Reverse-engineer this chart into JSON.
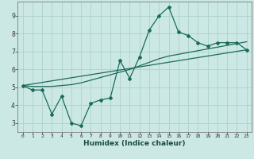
{
  "title": "",
  "xlabel": "Humidex (Indice chaleur)",
  "bg_color": "#cce8e4",
  "grid_color": "#b0d4d0",
  "line_color": "#1a6b5a",
  "xlim": [
    -0.5,
    23.5
  ],
  "ylim": [
    2.5,
    9.8
  ],
  "xticks": [
    0,
    1,
    2,
    3,
    4,
    5,
    6,
    7,
    8,
    9,
    10,
    11,
    12,
    13,
    14,
    15,
    16,
    17,
    18,
    19,
    20,
    21,
    22,
    23
  ],
  "yticks": [
    3,
    4,
    5,
    6,
    7,
    8,
    9
  ],
  "line1_x": [
    0,
    1,
    2,
    3,
    4,
    5,
    6,
    7,
    8,
    9,
    10,
    11,
    12,
    13,
    14,
    15,
    16,
    17,
    18,
    19,
    20,
    21,
    22,
    23
  ],
  "line1_y": [
    5.1,
    4.85,
    4.85,
    3.5,
    4.5,
    3.0,
    2.85,
    4.1,
    4.3,
    4.4,
    6.5,
    5.5,
    6.7,
    8.2,
    9.0,
    9.5,
    8.1,
    7.9,
    7.5,
    7.3,
    7.5,
    7.5,
    7.5,
    7.1
  ],
  "line2_x": [
    0,
    1,
    2,
    3,
    4,
    5,
    6,
    7,
    8,
    9,
    10,
    11,
    12,
    13,
    14,
    15,
    16,
    17,
    18,
    19,
    20,
    21,
    22,
    23
  ],
  "line2_y": [
    5.1,
    5.05,
    5.05,
    5.05,
    5.1,
    5.15,
    5.25,
    5.4,
    5.55,
    5.7,
    5.85,
    6.0,
    6.2,
    6.4,
    6.6,
    6.75,
    6.85,
    6.95,
    7.05,
    7.15,
    7.25,
    7.35,
    7.45,
    7.55
  ],
  "line3_x": [
    0,
    23
  ],
  "line3_y": [
    5.1,
    7.1
  ]
}
